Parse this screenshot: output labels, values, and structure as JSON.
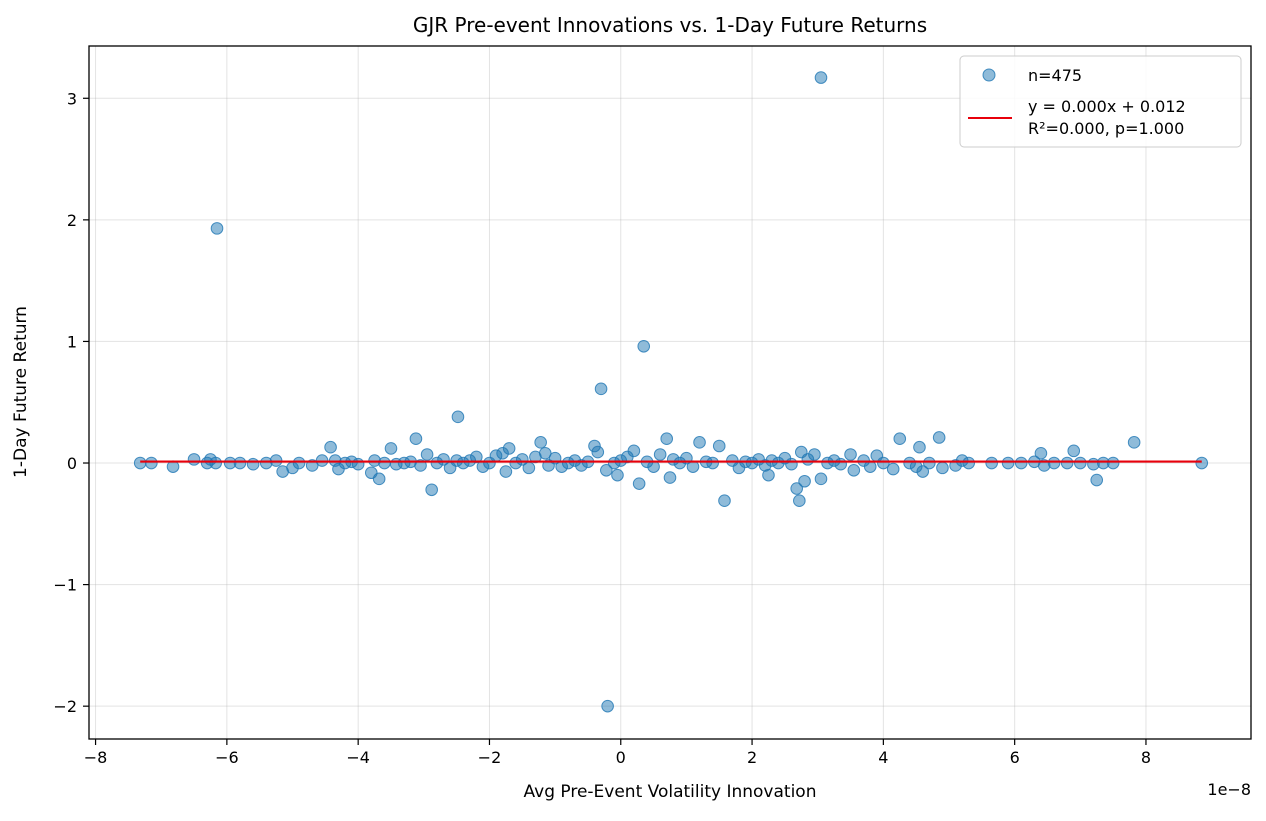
{
  "chart_data": {
    "type": "scatter",
    "title": "GJR Pre-event Innovations vs. 1-Day Future Returns",
    "xlabel": "Avg Pre-Event Volatility Innovation",
    "ylabel": "1-Day Future Return",
    "x_offset_label": "1e−8",
    "x_scale_exponent": -8,
    "xlim": [
      -8.1,
      9.6
    ],
    "ylim": [
      -2.27,
      3.43
    ],
    "x_ticks": [
      -8,
      -6,
      -4,
      -2,
      0,
      2,
      4,
      6,
      8
    ],
    "x_tick_labels": [
      "−8",
      "−6",
      "−4",
      "−2",
      "0",
      "2",
      "4",
      "6",
      "8"
    ],
    "y_ticks": [
      -2,
      -1,
      0,
      1,
      2,
      3
    ],
    "y_tick_labels": [
      "−2",
      "−1",
      "0",
      "1",
      "2",
      "3"
    ],
    "grid": true,
    "legend_position": "top-right",
    "colors": {
      "points": "#1f77b4",
      "fit_line": "#e8000b"
    },
    "series": [
      {
        "name": "n=475",
        "kind": "scatter",
        "points": [
          [
            -7.32,
            0.0
          ],
          [
            -7.15,
            0.0
          ],
          [
            -6.82,
            -0.03
          ],
          [
            -6.5,
            0.03
          ],
          [
            -6.3,
            0.0
          ],
          [
            -6.25,
            0.03
          ],
          [
            -6.17,
            0.0
          ],
          [
            -6.15,
            1.93
          ],
          [
            -5.95,
            0.0
          ],
          [
            -5.8,
            0.0
          ],
          [
            -5.6,
            -0.01
          ],
          [
            -5.4,
            0.0
          ],
          [
            -5.25,
            0.02
          ],
          [
            -5.15,
            -0.07
          ],
          [
            -5.0,
            -0.04
          ],
          [
            -4.9,
            0.0
          ],
          [
            -4.7,
            -0.02
          ],
          [
            -4.55,
            0.02
          ],
          [
            -4.42,
            0.13
          ],
          [
            -4.35,
            0.02
          ],
          [
            -4.3,
            -0.05
          ],
          [
            -4.2,
            0.0
          ],
          [
            -4.1,
            0.01
          ],
          [
            -4.0,
            -0.01
          ],
          [
            -3.8,
            -0.08
          ],
          [
            -3.75,
            0.02
          ],
          [
            -3.68,
            -0.13
          ],
          [
            -3.6,
            0.0
          ],
          [
            -3.5,
            0.12
          ],
          [
            -3.42,
            -0.01
          ],
          [
            -3.3,
            0.0
          ],
          [
            -3.2,
            0.01
          ],
          [
            -3.12,
            0.2
          ],
          [
            -3.05,
            -0.02
          ],
          [
            -2.95,
            0.07
          ],
          [
            -2.88,
            -0.22
          ],
          [
            -2.8,
            0.0
          ],
          [
            -2.7,
            0.03
          ],
          [
            -2.6,
            -0.04
          ],
          [
            -2.5,
            0.02
          ],
          [
            -2.48,
            0.38
          ],
          [
            -2.4,
            0.0
          ],
          [
            -2.3,
            0.02
          ],
          [
            -2.2,
            0.05
          ],
          [
            -2.1,
            -0.03
          ],
          [
            -2.0,
            0.0
          ],
          [
            -1.9,
            0.06
          ],
          [
            -1.8,
            0.08
          ],
          [
            -1.75,
            -0.07
          ],
          [
            -1.7,
            0.12
          ],
          [
            -1.6,
            0.0
          ],
          [
            -1.5,
            0.03
          ],
          [
            -1.4,
            -0.04
          ],
          [
            -1.3,
            0.05
          ],
          [
            -1.22,
            0.17
          ],
          [
            -1.15,
            0.08
          ],
          [
            -1.1,
            -0.02
          ],
          [
            -1.0,
            0.04
          ],
          [
            -0.9,
            -0.03
          ],
          [
            -0.8,
            0.0
          ],
          [
            -0.7,
            0.02
          ],
          [
            -0.6,
            -0.02
          ],
          [
            -0.5,
            0.01
          ],
          [
            -0.4,
            0.14
          ],
          [
            -0.35,
            0.09
          ],
          [
            -0.3,
            0.61
          ],
          [
            -0.22,
            -0.06
          ],
          [
            -0.2,
            -2.0
          ],
          [
            -0.1,
            0.0
          ],
          [
            -0.05,
            -0.1
          ],
          [
            0.0,
            0.02
          ],
          [
            0.1,
            0.05
          ],
          [
            0.2,
            0.1
          ],
          [
            0.28,
            -0.17
          ],
          [
            0.35,
            0.96
          ],
          [
            0.4,
            0.01
          ],
          [
            0.5,
            -0.03
          ],
          [
            0.6,
            0.07
          ],
          [
            0.7,
            0.2
          ],
          [
            0.75,
            -0.12
          ],
          [
            0.8,
            0.03
          ],
          [
            0.9,
            0.0
          ],
          [
            1.0,
            0.04
          ],
          [
            1.1,
            -0.03
          ],
          [
            1.2,
            0.17
          ],
          [
            1.3,
            0.01
          ],
          [
            1.4,
            0.0
          ],
          [
            1.5,
            0.14
          ],
          [
            1.58,
            -0.31
          ],
          [
            1.7,
            0.02
          ],
          [
            1.8,
            -0.04
          ],
          [
            1.9,
            0.01
          ],
          [
            2.0,
            0.0
          ],
          [
            2.1,
            0.03
          ],
          [
            2.2,
            -0.02
          ],
          [
            2.25,
            -0.1
          ],
          [
            2.3,
            0.02
          ],
          [
            2.4,
            0.0
          ],
          [
            2.5,
            0.04
          ],
          [
            2.6,
            -0.01
          ],
          [
            2.68,
            -0.21
          ],
          [
            2.72,
            -0.31
          ],
          [
            2.75,
            0.09
          ],
          [
            2.8,
            -0.15
          ],
          [
            2.85,
            0.03
          ],
          [
            2.95,
            0.07
          ],
          [
            3.05,
            3.17
          ],
          [
            3.05,
            -0.13
          ],
          [
            3.15,
            0.0
          ],
          [
            3.25,
            0.02
          ],
          [
            3.35,
            -0.01
          ],
          [
            3.5,
            0.07
          ],
          [
            3.55,
            -0.06
          ],
          [
            3.7,
            0.02
          ],
          [
            3.8,
            -0.03
          ],
          [
            3.9,
            0.06
          ],
          [
            4.0,
            0.0
          ],
          [
            4.15,
            -0.05
          ],
          [
            4.25,
            0.2
          ],
          [
            4.4,
            0.0
          ],
          [
            4.5,
            -0.03
          ],
          [
            4.55,
            0.13
          ],
          [
            4.6,
            -0.07
          ],
          [
            4.7,
            0.0
          ],
          [
            4.85,
            0.21
          ],
          [
            4.9,
            -0.04
          ],
          [
            5.1,
            -0.02
          ],
          [
            5.2,
            0.02
          ],
          [
            5.3,
            0.0
          ],
          [
            5.65,
            0.0
          ],
          [
            5.9,
            0.0
          ],
          [
            6.1,
            0.0
          ],
          [
            6.3,
            0.01
          ],
          [
            6.4,
            0.08
          ],
          [
            6.45,
            -0.02
          ],
          [
            6.6,
            0.0
          ],
          [
            6.8,
            0.0
          ],
          [
            6.9,
            0.1
          ],
          [
            7.0,
            0.0
          ],
          [
            7.2,
            -0.01
          ],
          [
            7.25,
            -0.14
          ],
          [
            7.35,
            0.0
          ],
          [
            7.5,
            0.0
          ],
          [
            7.82,
            0.17
          ],
          [
            8.85,
            0.0
          ]
        ]
      },
      {
        "name": "y = 0.000x + 0.012",
        "name_line2": "R²=0.000, p=1.000",
        "kind": "line",
        "points": [
          [
            -7.32,
            0.012
          ],
          [
            8.85,
            0.012
          ]
        ]
      }
    ]
  }
}
